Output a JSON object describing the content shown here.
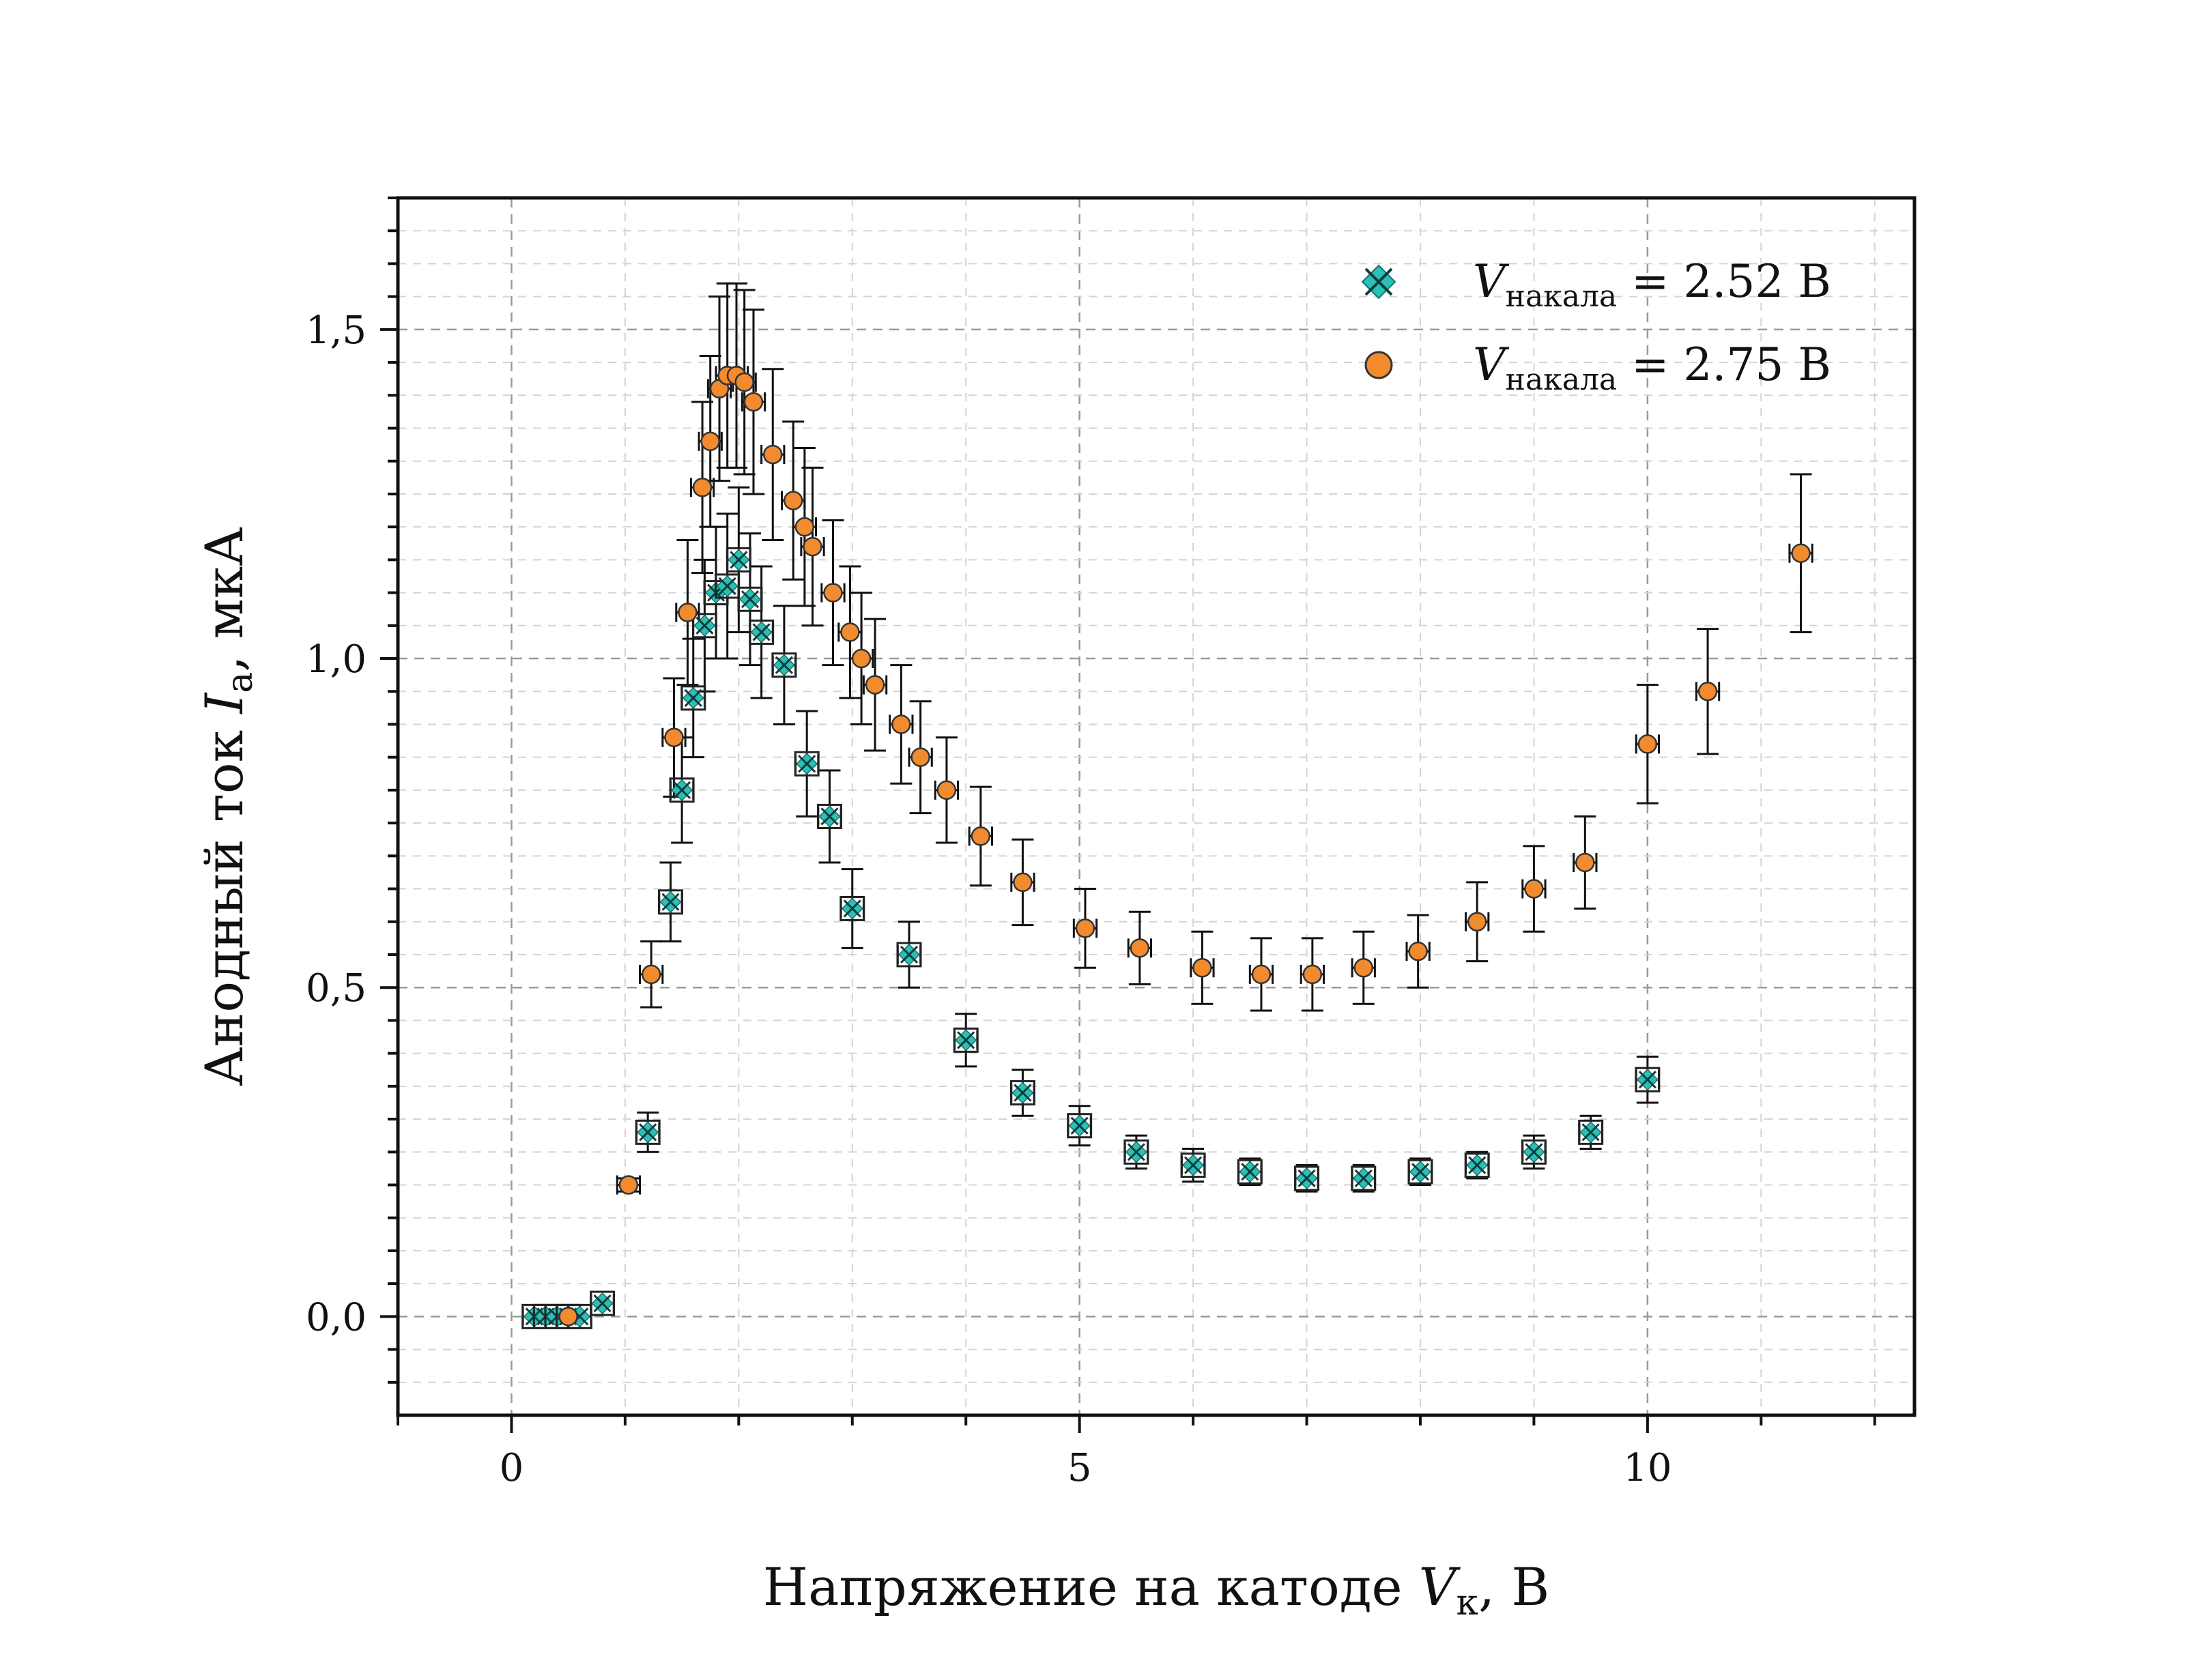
{
  "chart_data": {
    "type": "scatter",
    "xlabel": {
      "main": "Напряжение на катоде ",
      "var": "V",
      "sub": "к",
      "unit": ", В"
    },
    "ylabel": {
      "main": "Анодный ток ",
      "var": "I",
      "sub": "a",
      "unit": ", мкА"
    },
    "xlim": [
      -1,
      12.35
    ],
    "ylim": [
      -0.15,
      1.7
    ],
    "x_ticks": [
      0,
      5,
      10
    ],
    "x_tick_labels": [
      "0",
      "5",
      "10"
    ],
    "y_ticks": [
      0,
      0.5,
      1.0,
      1.5
    ],
    "y_tick_labels": [
      "0,0",
      "0,5",
      "1,0",
      "1,5"
    ],
    "grid": true,
    "legend_position": "top-right",
    "series": [
      {
        "name": {
          "var": "V",
          "sub": "накала",
          "rest": " = 2.52 В"
        },
        "marker": "x-diamond",
        "color": "#2bbfb6",
        "x": [
          0.2,
          0.3,
          0.4,
          0.5,
          0.6,
          0.8,
          1.2,
          1.4,
          1.5,
          1.6,
          1.7,
          1.8,
          1.9,
          2.0,
          2.1,
          2.2,
          2.4,
          2.6,
          2.8,
          3.0,
          3.5,
          4.0,
          4.5,
          5.0,
          5.5,
          6.0,
          6.5,
          7.0,
          7.5,
          8.0,
          8.5,
          9.0,
          9.5,
          10.0
        ],
        "y": [
          0.0,
          0.0,
          0.0,
          0.0,
          0.0,
          0.02,
          0.28,
          0.63,
          0.8,
          0.94,
          1.05,
          1.1,
          1.11,
          1.15,
          1.09,
          1.04,
          0.99,
          0.84,
          0.76,
          0.62,
          0.55,
          0.42,
          0.34,
          0.29,
          0.25,
          0.23,
          0.22,
          0.21,
          0.21,
          0.22,
          0.23,
          0.25,
          0.28,
          0.36
        ],
        "y_err": [
          0.005,
          0.005,
          0.005,
          0.005,
          0.005,
          0.005,
          0.03,
          0.06,
          0.08,
          0.09,
          0.1,
          0.1,
          0.11,
          0.11,
          0.1,
          0.1,
          0.09,
          0.08,
          0.07,
          0.06,
          0.05,
          0.04,
          0.035,
          0.03,
          0.025,
          0.025,
          0.02,
          0.02,
          0.02,
          0.02,
          0.02,
          0.025,
          0.025,
          0.035
        ],
        "x_err": 0.1
      },
      {
        "name": {
          "var": "V",
          "sub": "накала",
          "rest": " = 2.75 В"
        },
        "marker": "circle",
        "color": "#f28a2e",
        "x": [
          0.5,
          1.03,
          1.23,
          1.43,
          1.55,
          1.68,
          1.75,
          1.83,
          1.9,
          1.98,
          2.05,
          2.13,
          2.3,
          2.48,
          2.58,
          2.65,
          2.83,
          2.98,
          3.08,
          3.2,
          3.43,
          3.6,
          3.83,
          4.13,
          4.5,
          5.05,
          5.53,
          6.08,
          6.6,
          7.05,
          7.5,
          7.98,
          8.5,
          9.0,
          9.45,
          10.0,
          10.53,
          11.35
        ],
        "y": [
          0.0,
          0.2,
          0.52,
          0.88,
          1.07,
          1.26,
          1.33,
          1.41,
          1.43,
          1.43,
          1.42,
          1.39,
          1.31,
          1.24,
          1.2,
          1.17,
          1.1,
          1.04,
          1.0,
          0.96,
          0.9,
          0.85,
          0.8,
          0.73,
          0.66,
          0.59,
          0.56,
          0.53,
          0.52,
          0.52,
          0.53,
          0.555,
          0.6,
          0.65,
          0.69,
          0.87,
          0.95,
          1.16
        ],
        "y_err": [
          0.005,
          0.01,
          0.05,
          0.09,
          0.11,
          0.13,
          0.13,
          0.14,
          0.14,
          0.14,
          0.14,
          0.14,
          0.13,
          0.12,
          0.12,
          0.12,
          0.11,
          0.1,
          0.1,
          0.1,
          0.09,
          0.085,
          0.08,
          0.075,
          0.065,
          0.06,
          0.055,
          0.055,
          0.055,
          0.055,
          0.055,
          0.055,
          0.06,
          0.065,
          0.07,
          0.09,
          0.095,
          0.12
        ],
        "x_err": 0.1
      }
    ]
  }
}
